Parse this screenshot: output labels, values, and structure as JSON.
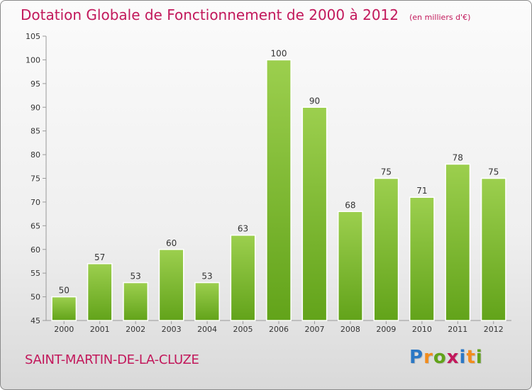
{
  "chart_data": {
    "type": "bar",
    "title": "Dotation Globale de Fonctionnement de 2000 à 2012",
    "subtitle": "(en milliers d'€)",
    "categories": [
      "2000",
      "2001",
      "2002",
      "2003",
      "2004",
      "2005",
      "2006",
      "2007",
      "2008",
      "2009",
      "2010",
      "2011",
      "2012"
    ],
    "values": [
      50,
      57,
      53,
      60,
      53,
      63,
      100,
      90,
      68,
      75,
      71,
      78,
      75
    ],
    "data_labels": [
      "50",
      "57",
      "53",
      "60",
      "53",
      "63",
      "100",
      "90",
      "68",
      "75",
      "71",
      "78",
      "75"
    ],
    "ylim": [
      45,
      105
    ],
    "yticks": [
      45,
      50,
      55,
      60,
      65,
      70,
      75,
      80,
      85,
      90,
      95,
      100,
      105
    ],
    "ytick_labels": [
      "45",
      "50",
      "55",
      "60",
      "65",
      "70",
      "75",
      "80",
      "85",
      "90",
      "95",
      "100",
      "105"
    ],
    "grid": false,
    "bar_color_top": "#9ccf4e",
    "bar_color_bottom": "#62a31a"
  },
  "commune": "SAINT-MARTIN-DE-LA-CLUZE",
  "logo": {
    "letters": [
      "P",
      "r",
      "o",
      "x",
      "i",
      "t",
      "i"
    ],
    "colors": [
      "#2b78c5",
      "#f28c1c",
      "#62a31a",
      "#c2185b",
      "#2b78c5",
      "#f28c1c",
      "#62a31a"
    ]
  }
}
